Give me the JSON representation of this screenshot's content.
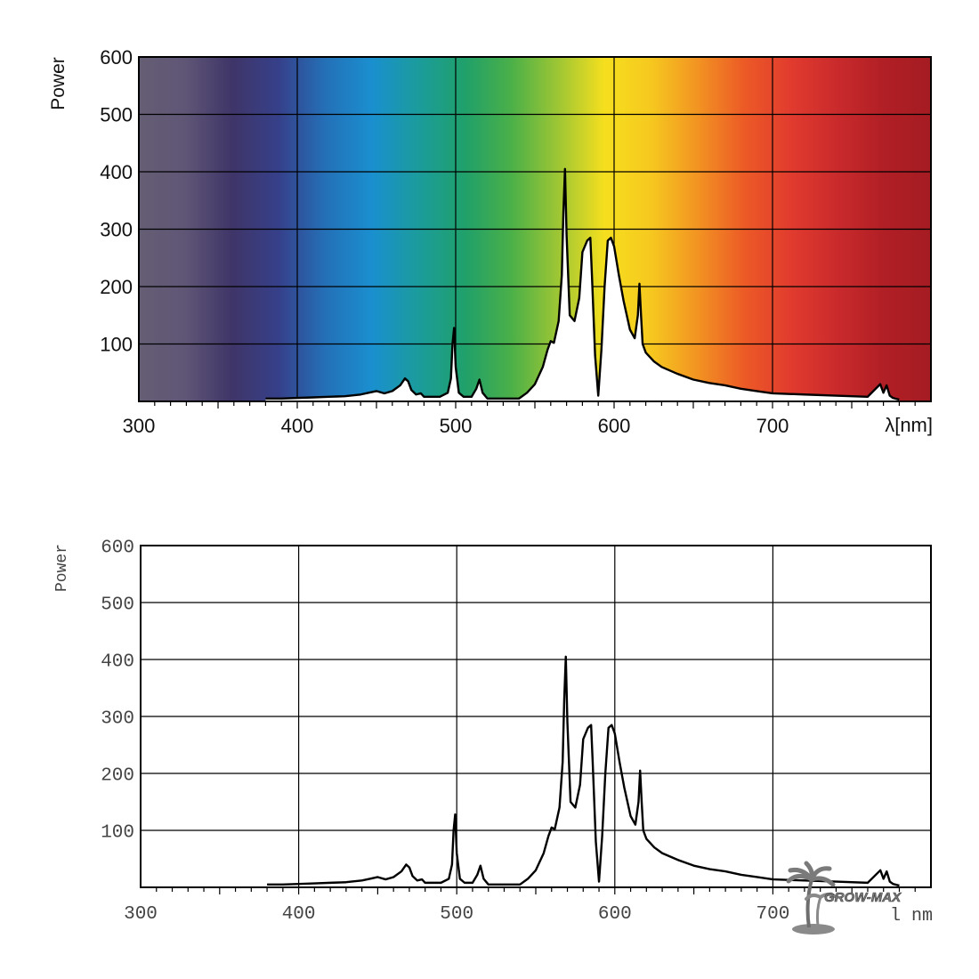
{
  "chart_data": [
    {
      "type": "line",
      "background": "visible-spectrum-gradient",
      "ylabel": "Power",
      "xlabel": "λ[nm]",
      "xlim": [
        300,
        800
      ],
      "ylim": [
        0,
        600
      ],
      "x_ticks": [
        "300",
        "400",
        "500",
        "600",
        "700"
      ],
      "y_ticks": [
        "100",
        "200",
        "300",
        "400",
        "500",
        "600"
      ],
      "grid": true,
      "fill_under_curve": "#ffffff",
      "series": [
        {
          "x": [
            380,
            390,
            400,
            410,
            420,
            430,
            440,
            445,
            450,
            455,
            460,
            465,
            468,
            470,
            472,
            475,
            478,
            480,
            485,
            490,
            495,
            497,
            498,
            499,
            500,
            502,
            505,
            510,
            513,
            515,
            517,
            520,
            530,
            540,
            545,
            550,
            555,
            558,
            560,
            562,
            565,
            567,
            568,
            569,
            570,
            572,
            575,
            578,
            580,
            583,
            585,
            586,
            588,
            590,
            592,
            594,
            596,
            598,
            600,
            603,
            606,
            610,
            613,
            615,
            616,
            617,
            618,
            620,
            625,
            630,
            640,
            650,
            660,
            670,
            680,
            690,
            700,
            720,
            740,
            760,
            768,
            770,
            772,
            774,
            776,
            780
          ],
          "values": [
            5,
            5,
            6,
            7,
            8,
            9,
            12,
            15,
            18,
            14,
            18,
            28,
            40,
            35,
            20,
            12,
            14,
            8,
            8,
            8,
            15,
            40,
            100,
            128,
            60,
            15,
            8,
            8,
            22,
            38,
            15,
            5,
            5,
            5,
            15,
            30,
            60,
            90,
            105,
            102,
            140,
            220,
            330,
            405,
            290,
            150,
            140,
            180,
            260,
            280,
            285,
            220,
            80,
            10,
            90,
            200,
            280,
            285,
            270,
            220,
            175,
            125,
            110,
            150,
            205,
            150,
            100,
            85,
            70,
            60,
            48,
            38,
            32,
            28,
            22,
            18,
            14,
            12,
            10,
            8,
            30,
            15,
            28,
            10,
            6,
            3
          ]
        }
      ]
    },
    {
      "type": "line",
      "ylabel": "Power",
      "xlabel": "l nm",
      "xlim": [
        300,
        800
      ],
      "ylim": [
        0,
        600
      ],
      "x_ticks": [
        "300",
        "400",
        "500",
        "600",
        "700"
      ],
      "y_ticks": [
        "100",
        "200",
        "300",
        "400",
        "500",
        "600"
      ],
      "grid": true,
      "series": [
        {
          "x": [
            380,
            390,
            400,
            410,
            420,
            430,
            440,
            445,
            450,
            455,
            460,
            465,
            468,
            470,
            472,
            475,
            478,
            480,
            485,
            490,
            495,
            497,
            498,
            499,
            500,
            502,
            505,
            510,
            513,
            515,
            517,
            520,
            530,
            540,
            545,
            550,
            555,
            558,
            560,
            562,
            565,
            567,
            568,
            569,
            570,
            572,
            575,
            578,
            580,
            583,
            585,
            586,
            588,
            590,
            592,
            594,
            596,
            598,
            600,
            603,
            606,
            610,
            613,
            615,
            616,
            617,
            618,
            620,
            625,
            630,
            640,
            650,
            660,
            670,
            680,
            690,
            700,
            720,
            740,
            760,
            768,
            770,
            772,
            774,
            776,
            780
          ],
          "values": [
            5,
            5,
            6,
            7,
            8,
            9,
            12,
            15,
            18,
            14,
            18,
            28,
            40,
            35,
            20,
            12,
            14,
            8,
            8,
            8,
            15,
            40,
            100,
            128,
            60,
            15,
            8,
            8,
            22,
            38,
            15,
            5,
            5,
            5,
            15,
            30,
            60,
            90,
            105,
            102,
            140,
            220,
            330,
            405,
            290,
            150,
            140,
            180,
            260,
            280,
            285,
            220,
            80,
            10,
            90,
            200,
            280,
            285,
            270,
            220,
            175,
            125,
            110,
            150,
            205,
            150,
            100,
            85,
            70,
            60,
            48,
            38,
            32,
            28,
            22,
            18,
            14,
            12,
            10,
            8,
            30,
            15,
            28,
            10,
            6,
            3
          ]
        }
      ]
    }
  ],
  "watermark": {
    "logo_icon": "palm-tree-icon",
    "text": "GROW-MAX"
  },
  "colors": {
    "spectrum_stops": [
      "#655e74",
      "#5f5676",
      "#3f3568",
      "#36408a",
      "#2470b7",
      "#1a8fcf",
      "#1b9c9c",
      "#20a06a",
      "#4bb048",
      "#9ec634",
      "#f6df1e",
      "#f6c81f",
      "#f29322",
      "#ec5a26",
      "#e13b2e",
      "#c92a2c",
      "#b01f25",
      "#a41c22"
    ],
    "line": "#000000",
    "grid": "#000000"
  }
}
